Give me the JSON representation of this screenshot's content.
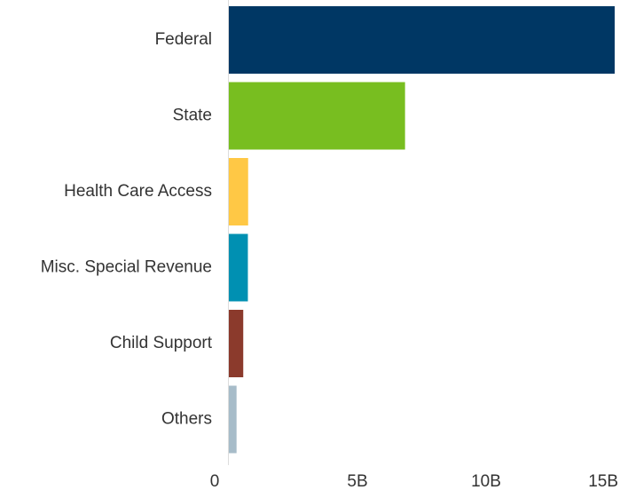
{
  "chart_data": {
    "type": "bar",
    "orientation": "horizontal",
    "title": "",
    "xlabel": "",
    "ylabel": "",
    "categories": [
      "Federal",
      "State",
      "Health Care Access",
      "Misc. Special Revenue",
      "Child Support",
      "Others"
    ],
    "values": [
      15000000000,
      6850000000,
      750000000,
      740000000,
      560000000,
      300000000
    ],
    "colors": [
      "#003764",
      "#78be20",
      "#ffc845",
      "#0090b2",
      "#8b3a2c",
      "#a7bcc9"
    ],
    "xlim": [
      0,
      15000000000
    ],
    "x_ticks": [
      0,
      5000000000,
      10000000000,
      15000000000
    ],
    "x_tick_labels": [
      "0",
      "5B",
      "10B",
      "15B"
    ],
    "grid": false,
    "legend": "none"
  }
}
